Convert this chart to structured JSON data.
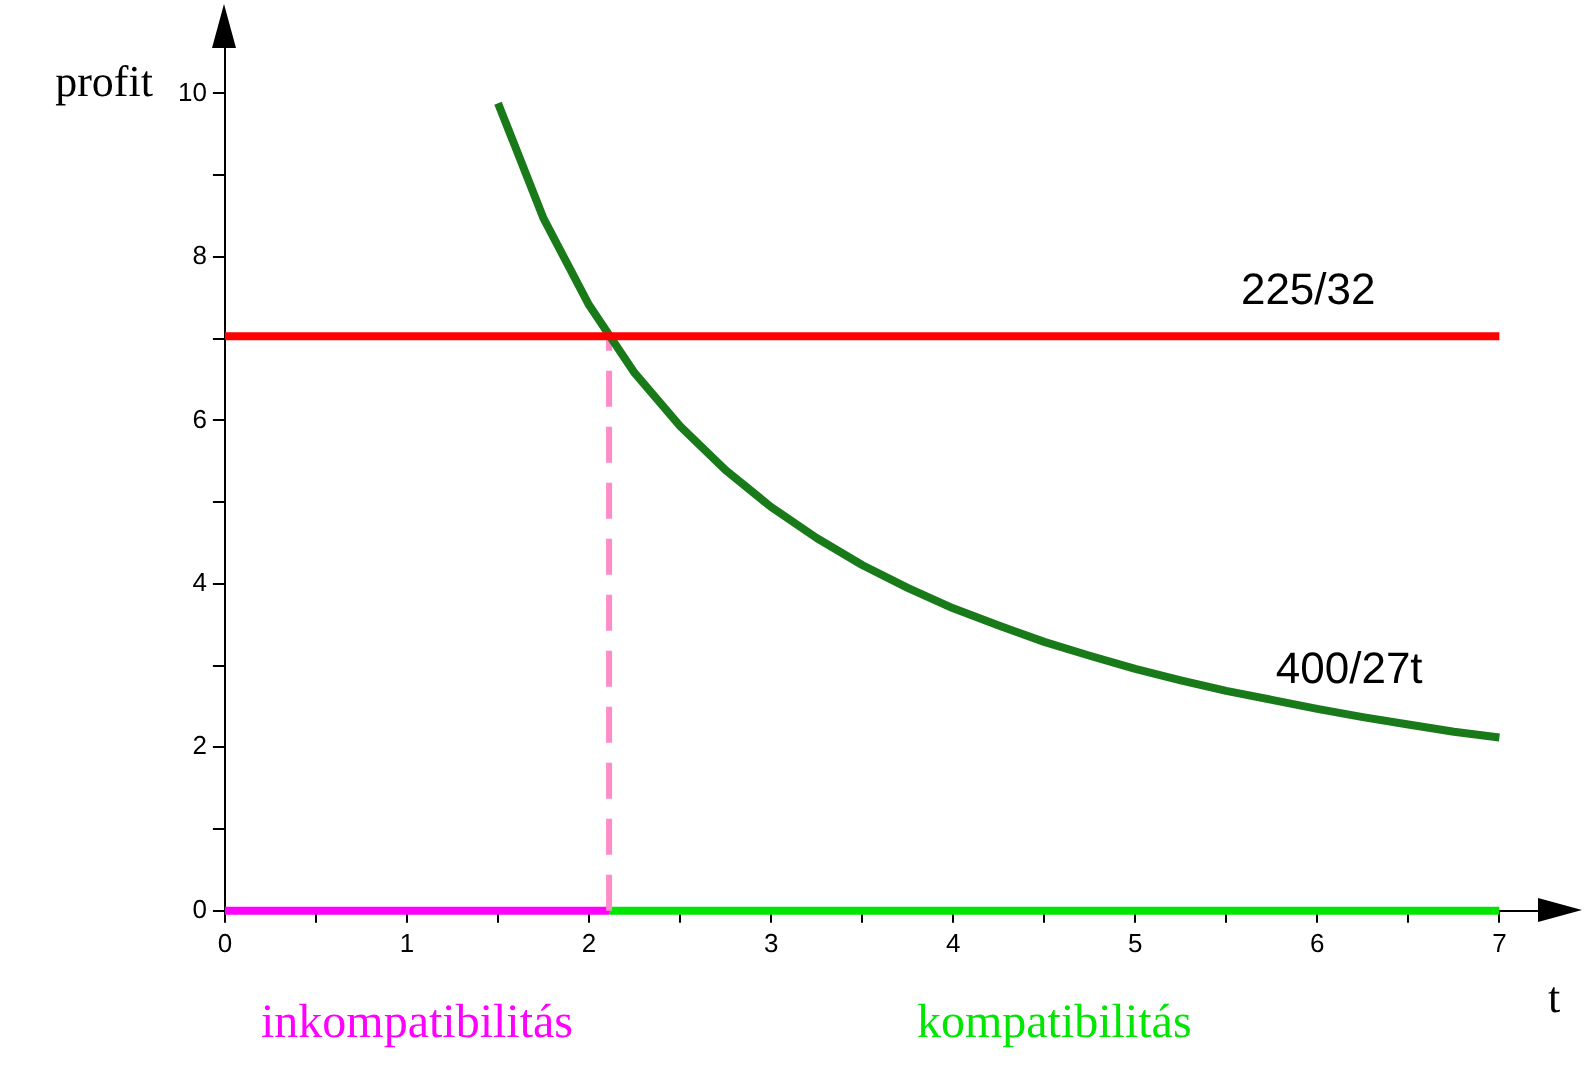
{
  "chart_data": {
    "type": "line",
    "xlabel": "t",
    "ylabel": "profit",
    "xlim": [
      0,
      7.3
    ],
    "ylim": [
      0,
      10.8
    ],
    "xticks": [
      0,
      {
        "value": 0.5,
        "label": null
      },
      1,
      {
        "value": 1.5,
        "label": null
      },
      2,
      {
        "value": 2.5,
        "label": null
      },
      3,
      {
        "value": 3.5,
        "label": null
      },
      4,
      {
        "value": 4.5,
        "label": null
      },
      5,
      {
        "value": 5.5,
        "label": null
      },
      6,
      {
        "value": 6.5,
        "label": null
      },
      7
    ],
    "yticks": [
      0,
      {
        "value": 1,
        "label": null
      },
      2,
      {
        "value": 3,
        "label": null
      },
      4,
      {
        "value": 5,
        "label": null
      },
      6,
      {
        "value": 7,
        "label": null
      },
      8,
      {
        "value": 9,
        "label": null
      },
      10
    ],
    "grid": false,
    "legend": false,
    "marker": "none",
    "series": [
      {
        "name": "225/32",
        "color": "#ff0000",
        "x": [
          0,
          7
        ],
        "values": [
          7.03,
          7.03
        ]
      },
      {
        "name": "400/27t",
        "color": "#197a19",
        "x": [
          1.5,
          1.75,
          2,
          2.25,
          2.5,
          2.75,
          3,
          3.25,
          3.5,
          3.75,
          4,
          4.25,
          4.5,
          4.75,
          5,
          5.25,
          5.5,
          5.75,
          6,
          6.25,
          6.5,
          6.75,
          7
        ],
        "values": [
          9.88,
          8.47,
          7.41,
          6.58,
          5.93,
          5.39,
          4.94,
          4.56,
          4.23,
          3.95,
          3.7,
          3.49,
          3.29,
          3.12,
          2.96,
          2.82,
          2.69,
          2.58,
          2.47,
          2.37,
          2.28,
          2.19,
          2.12
        ]
      },
      {
        "color": "#ff8cc8",
        "line_style": "dashed",
        "x": [
          2.11,
          2.11
        ],
        "values": [
          0,
          7.03
        ]
      },
      {
        "name": "inkompatibilitás",
        "color": "#ff00ff",
        "x": [
          0,
          2.11
        ],
        "values": [
          0,
          0
        ]
      },
      {
        "name": "kompatibilitás",
        "color": "#00e600",
        "x": [
          2.11,
          7
        ],
        "values": [
          0,
          0
        ]
      }
    ]
  }
}
